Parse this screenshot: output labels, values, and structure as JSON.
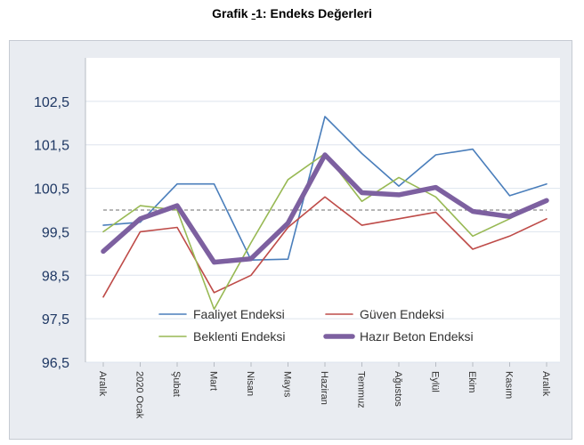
{
  "page": {
    "title_prefix": "Grafik ",
    "title_mark": "-",
    "title_rest": "1: Endeks Değerleri"
  },
  "chart_data": {
    "type": "line",
    "title": "Grafik -1: Endeks Değerleri",
    "xlabel": "",
    "ylabel": "",
    "ylim": [
      96.5,
      103.5
    ],
    "yticks": [
      96.5,
      97.5,
      98.5,
      99.5,
      100.5,
      101.5,
      102.5
    ],
    "ytick_labels": [
      "96,5",
      "97,5",
      "98,5",
      "99,5",
      "100,5",
      "101,5",
      "102,5"
    ],
    "categories": [
      "Aralık",
      "2020 Ocak",
      "Şubat",
      "Mart",
      "Nisan",
      "Mayıs",
      "Haziran",
      "Temmuz",
      "Ağustos",
      "Eylül",
      "Ekim",
      "Kasım",
      "Aralık"
    ],
    "grid": true,
    "reference_line": 100,
    "legend_position": "bottom-center",
    "series": [
      {
        "name": "Faaliyet Endeksi",
        "color": "#4a7ebb",
        "width": "thin",
        "values": [
          99.65,
          99.72,
          100.6,
          100.6,
          98.85,
          98.87,
          102.15,
          101.3,
          100.55,
          101.27,
          101.4,
          100.33,
          100.6
        ]
      },
      {
        "name": "Güven Endeksi",
        "color": "#be4b48",
        "width": "thin",
        "values": [
          98.0,
          99.5,
          99.6,
          98.1,
          98.5,
          99.6,
          100.3,
          99.65,
          99.8,
          99.95,
          99.1,
          99.4,
          99.8
        ]
      },
      {
        "name": "Beklenti Endeksi",
        "color": "#98b954",
        "width": "thin",
        "values": [
          99.5,
          100.1,
          100.0,
          97.72,
          99.25,
          100.7,
          101.3,
          100.2,
          100.75,
          100.3,
          99.4,
          99.8,
          100.25
        ]
      },
      {
        "name": "Hazır Beton Endeksi",
        "color": "#7d60a0",
        "width": "thick",
        "values": [
          99.05,
          99.8,
          100.1,
          98.8,
          98.88,
          99.7,
          101.27,
          100.4,
          100.35,
          100.52,
          99.97,
          99.85,
          100.22
        ]
      }
    ]
  }
}
